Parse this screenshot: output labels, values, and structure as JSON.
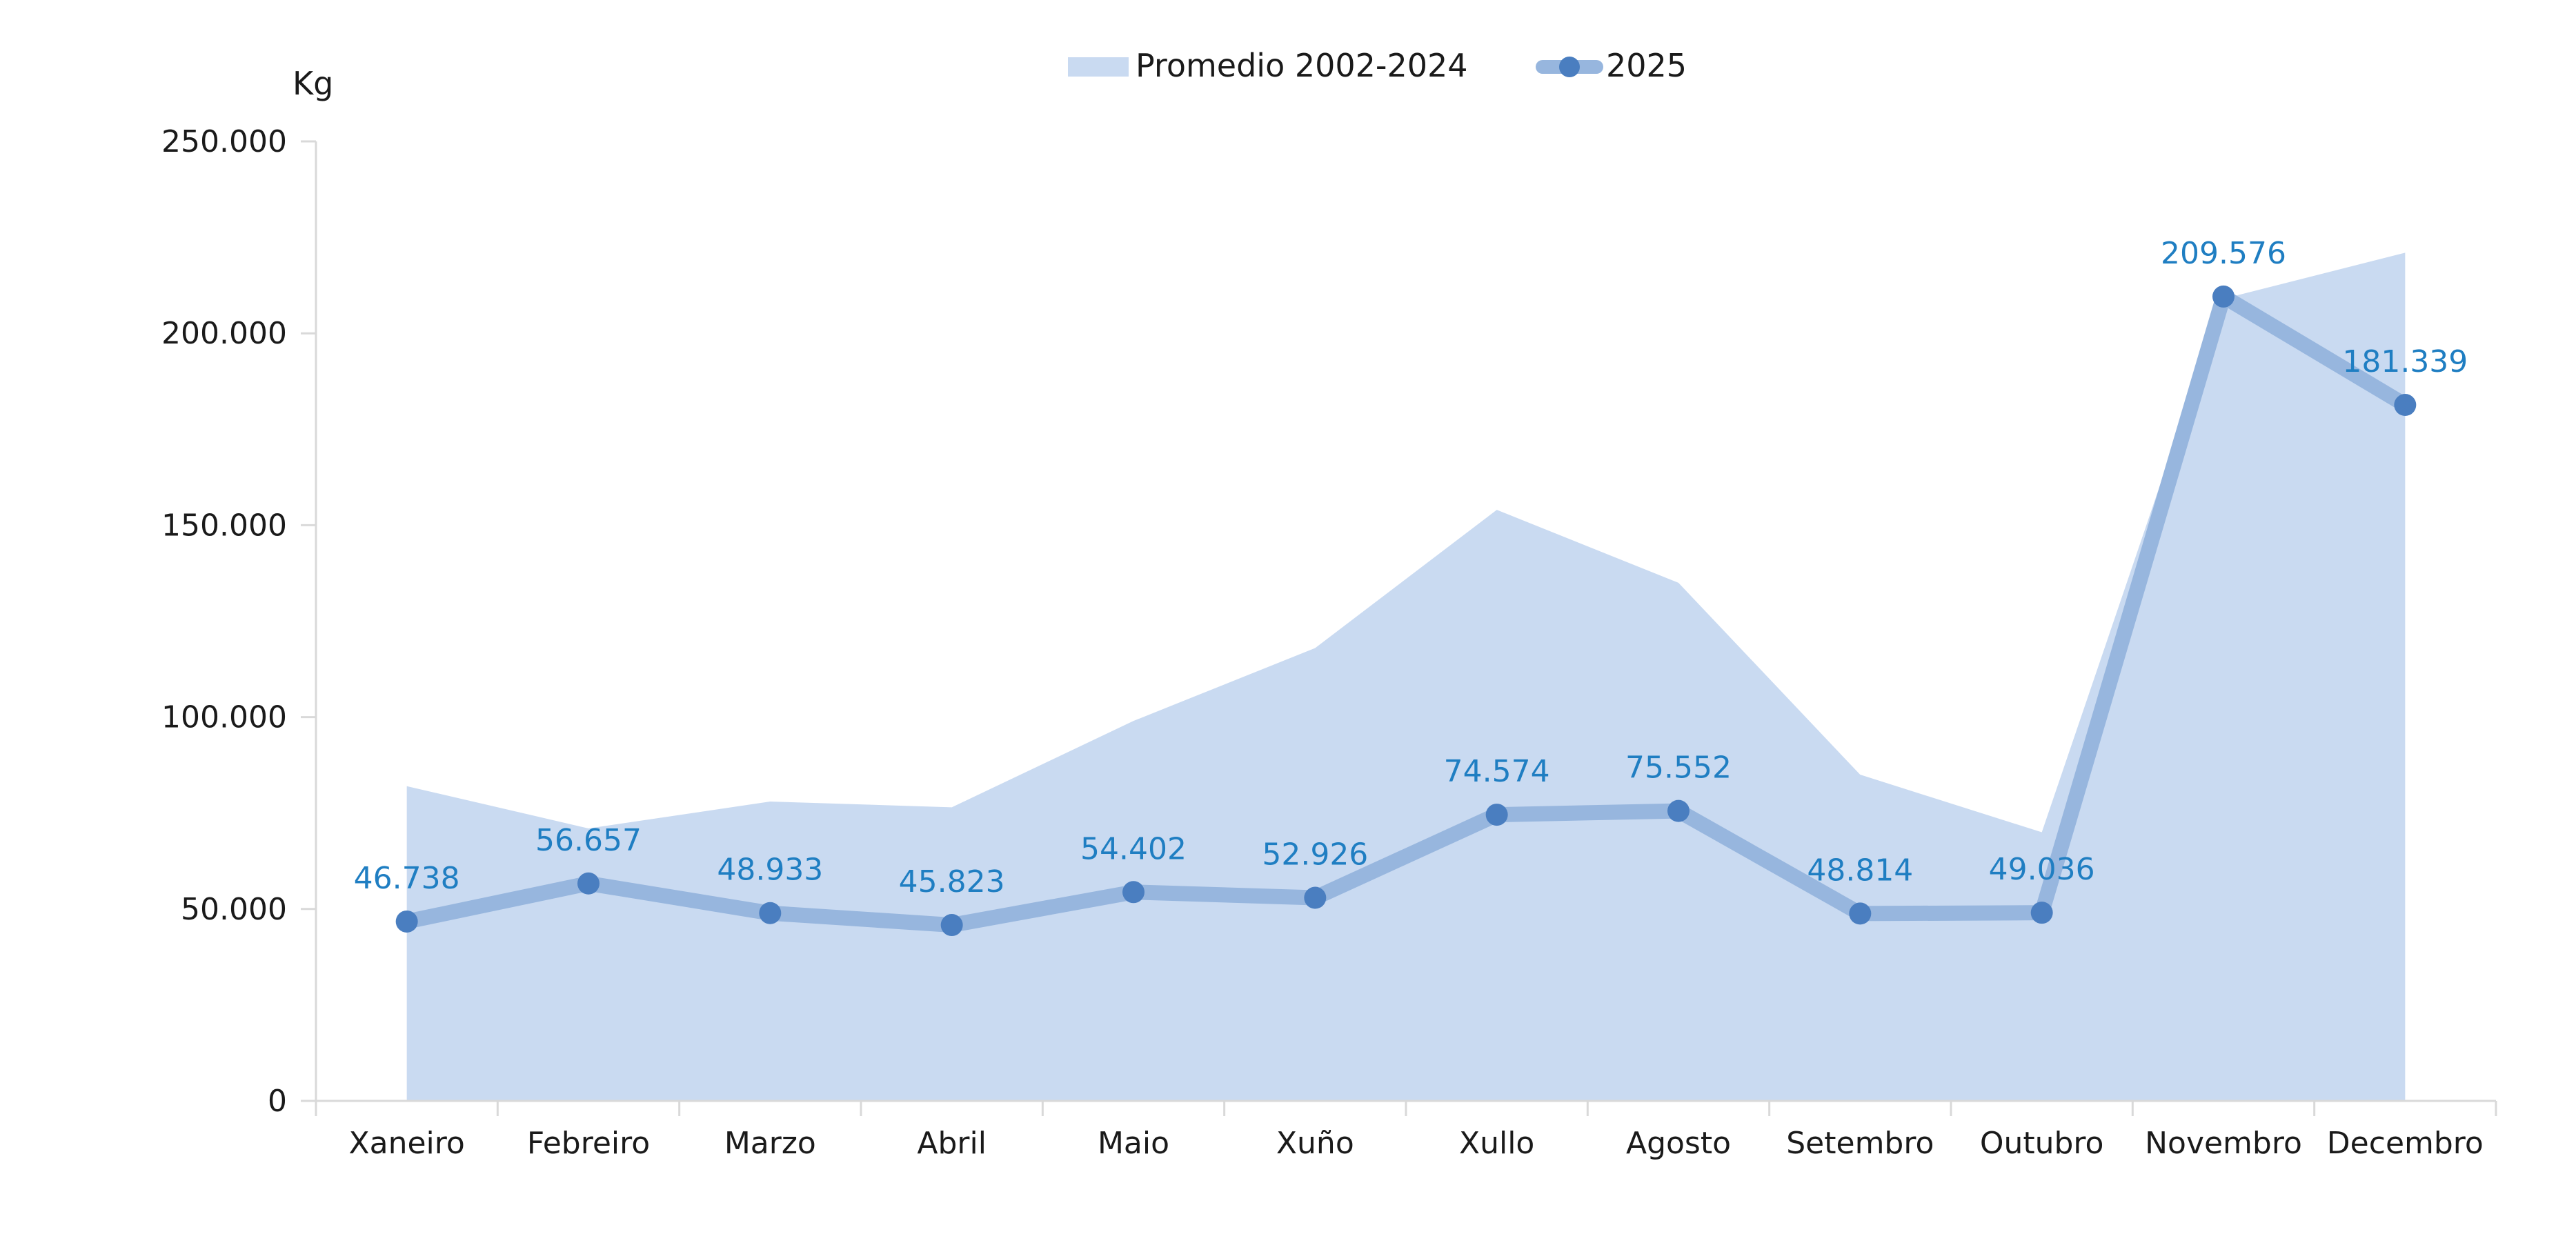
{
  "chart_data": {
    "type": "area",
    "ylabel": "Kg",
    "ylim": [
      0,
      250000
    ],
    "yticks": [
      0,
      50000,
      100000,
      150000,
      200000,
      250000
    ],
    "ytick_labels": [
      "0",
      "50.000",
      "100.000",
      "150.000",
      "200.000",
      "250.000"
    ],
    "grid": false,
    "legend_position": "top-center",
    "categories": [
      "Xaneiro",
      "Febreiro",
      "Marzo",
      "Abril",
      "Maio",
      "Xuño",
      "Xullo",
      "Agosto",
      "Setembro",
      "Outubro",
      "Novembro",
      "Decembro"
    ],
    "series": [
      {
        "name": "Promedio 2002-2024",
        "kind": "area",
        "color": "#c9daf1",
        "values": [
          82000,
          71000,
          78000,
          76500,
          99000,
          118000,
          154000,
          135000,
          85000,
          70000,
          209000,
          221000
        ]
      },
      {
        "name": "2025",
        "kind": "line",
        "color": "#4a7ec0",
        "line_color": "#97b6de",
        "label_color": "#1f7ec2",
        "values": [
          46738,
          56657,
          48933,
          45823,
          54402,
          52926,
          74574,
          75552,
          48814,
          49036,
          209576,
          181339
        ],
        "labels": [
          "46.738",
          "56.657",
          "48.933",
          "45.823",
          "54.402",
          "52.926",
          "74.574",
          "75.552",
          "48.814",
          "49.036",
          "209.576",
          "181.339"
        ]
      }
    ]
  }
}
